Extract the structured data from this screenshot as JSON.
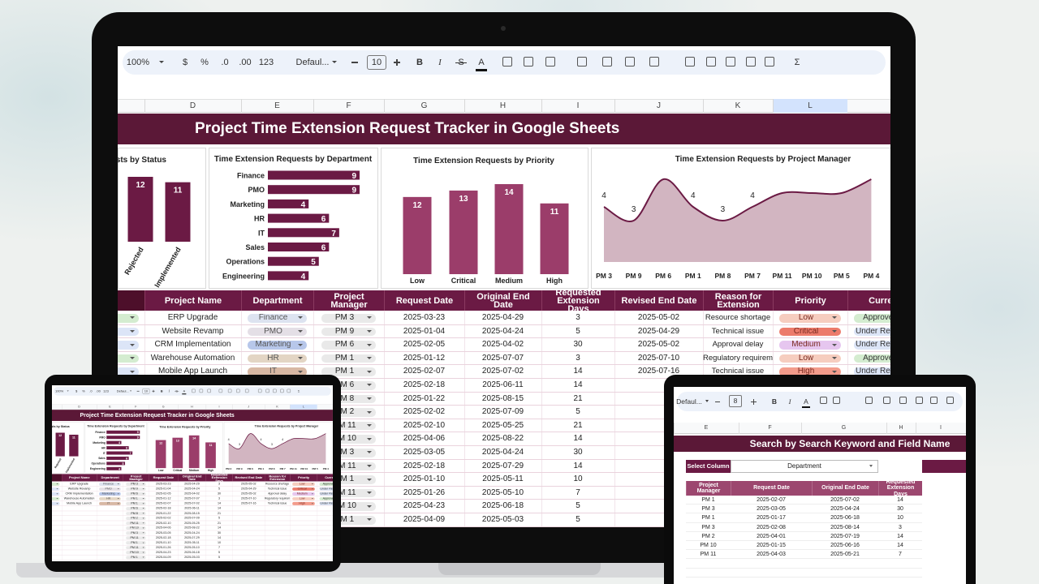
{
  "toolbar": {
    "zoom": "100%",
    "currency": "$",
    "percent": "%",
    "decrease_decimals": ".0",
    "increase_decimals": ".00",
    "number_format": "123",
    "font": "Defaul...",
    "font_size": "10",
    "bold": "B",
    "italic": "I",
    "strikethrough": "S",
    "text_color": "A",
    "functions": "Σ"
  },
  "column_letters": [
    "D",
    "E",
    "F",
    "G",
    "H",
    "I",
    "J",
    "K",
    "L"
  ],
  "title": "Project Time Extension Request Tracker in Google Sheets",
  "charts": [
    {
      "type": "bar",
      "title": "Time Extension Requests by Status",
      "categories": [
        "Rejected",
        "Implemented"
      ],
      "values": [
        12,
        11
      ],
      "color": "#6b1a44",
      "ylim": [
        0,
        12
      ]
    },
    {
      "type": "hbar",
      "title": "Time Extension Requests by Department",
      "categories": [
        "Finance",
        "PMO",
        "Marketing",
        "HR",
        "IT",
        "Sales",
        "Operations",
        "Engineering"
      ],
      "values": [
        9,
        9,
        4,
        6,
        7,
        6,
        5,
        4
      ],
      "color": "#6b1a44",
      "xlim": [
        0,
        9
      ]
    },
    {
      "type": "bar",
      "title": "Time Extension Requests by Priority",
      "categories": [
        "Low",
        "Critical",
        "Medium",
        "High"
      ],
      "values": [
        12,
        13,
        14,
        11
      ],
      "color": "#9b3d6a",
      "ylim": [
        0,
        14
      ]
    },
    {
      "type": "area",
      "title": "Time Extension Requests by Project Manager",
      "categories": [
        "PM 3",
        "PM 9",
        "PM 6",
        "PM 1",
        "PM 8",
        "PM 7",
        "PM 11",
        "PM 10",
        "PM 5",
        "PM 4"
      ],
      "values": [
        4,
        3,
        6,
        4,
        3,
        4,
        5,
        5,
        5,
        6
      ],
      "value_labels": [
        "4",
        "3",
        null,
        "4",
        "3",
        "4",
        null,
        null,
        null,
        null
      ],
      "color": "#6b1a44",
      "fill": "#d2b5c1",
      "ylim": [
        0,
        8
      ]
    }
  ],
  "table": {
    "headers": [
      "Project Name",
      "Department",
      "Project Manager",
      "Request Date",
      "Original End Date",
      "Requested Extension Days",
      "Revised End Date",
      "Reason for Extension",
      "Priority",
      "Current"
    ],
    "rows": [
      {
        "project": "ERP Upgrade",
        "department": "Finance",
        "manager": "PM 3",
        "request_date": "2025-03-23",
        "original_end_date": "2025-04-29",
        "extension_days": 3,
        "revised_end_date": "2025-05-02",
        "reason": "Resource shortage",
        "priority": "Low",
        "status": "Approved"
      },
      {
        "project": "Website Revamp",
        "department": "PMO",
        "manager": "PM 9",
        "request_date": "2025-01-04",
        "original_end_date": "2025-04-24",
        "extension_days": 5,
        "revised_end_date": "2025-04-29",
        "reason": "Technical issue",
        "priority": "Critical",
        "status": "Under Review"
      },
      {
        "project": "CRM Implementation",
        "department": "Marketing",
        "manager": "PM 6",
        "request_date": "2025-02-05",
        "original_end_date": "2025-04-02",
        "extension_days": 30,
        "revised_end_date": "2025-05-02",
        "reason": "Approval delay",
        "priority": "Medium",
        "status": "Under Review"
      },
      {
        "project": "Warehouse Automation",
        "department": "HR",
        "manager": "PM 1",
        "request_date": "2025-01-12",
        "original_end_date": "2025-07-07",
        "extension_days": 3,
        "revised_end_date": "2025-07-10",
        "reason": "Regulatory requirement",
        "priority": "Low",
        "status": "Approved"
      },
      {
        "project": "Mobile App Launch",
        "department": "IT",
        "manager": "PM 1",
        "request_date": "2025-02-07",
        "original_end_date": "2025-07-02",
        "extension_days": 14,
        "revised_end_date": "2025-07-16",
        "reason": "Technical issue",
        "priority": "High",
        "status": "Under Review"
      },
      {
        "manager": "PM 6",
        "request_date": "2025-02-18",
        "original_end_date": "2025-06-11",
        "extension_days": 14
      },
      {
        "manager": "PM 8",
        "request_date": "2025-01-22",
        "original_end_date": "2025-08-15",
        "extension_days": 21
      },
      {
        "manager": "PM 2",
        "request_date": "2025-02-02",
        "original_end_date": "2025-07-09",
        "extension_days": 5
      },
      {
        "manager": "PM 11",
        "request_date": "2025-02-10",
        "original_end_date": "2025-05-25",
        "extension_days": 21
      },
      {
        "manager": "PM 10",
        "request_date": "2025-04-06",
        "original_end_date": "2025-08-22",
        "extension_days": 14
      },
      {
        "manager": "PM 3",
        "request_date": "2025-03-05",
        "original_end_date": "2025-04-24",
        "extension_days": 30
      },
      {
        "manager": "PM 11",
        "request_date": "2025-02-18",
        "original_end_date": "2025-07-29",
        "extension_days": 14
      },
      {
        "manager": "PM 1",
        "request_date": "2025-01-10",
        "original_end_date": "2025-05-11",
        "extension_days": 10
      },
      {
        "manager": "PM 11",
        "request_date": "2025-01-26",
        "original_end_date": "2025-05-10",
        "extension_days": 7
      },
      {
        "manager": "PM 10",
        "request_date": "2025-04-23",
        "original_end_date": "2025-06-18",
        "extension_days": 5
      },
      {
        "manager": "PM 1",
        "request_date": "2025-04-09",
        "original_end_date": "2025-05-03",
        "extension_days": 5
      }
    ]
  },
  "search_panel": {
    "toolbar": {
      "font": "Defaul...",
      "font_size": "8",
      "bold": "B",
      "italic": "I",
      "text_color": "A"
    },
    "column_letters": [
      "E",
      "F",
      "G",
      "H",
      "I"
    ],
    "title": "Search by Search Keyword and Field Name",
    "select_label": "Select Column",
    "select_value": "Department",
    "headers": [
      "Project Manager",
      "Request Date",
      "Original End Date",
      "Requested Extension Days"
    ],
    "rows": [
      [
        "PM 1",
        "2025-02-07",
        "2025-07-02",
        14
      ],
      [
        "PM 3",
        "2025-03-05",
        "2025-04-24",
        30
      ],
      [
        "PM 1",
        "2025-01-17",
        "2025-06-18",
        10
      ],
      [
        "PM 3",
        "2025-02-08",
        "2025-08-14",
        3
      ],
      [
        "PM 2",
        "2025-04-01",
        "2025-07-19",
        14
      ],
      [
        "PM 10",
        "2025-01-15",
        "2025-06-16",
        14
      ],
      [
        "PM 11",
        "2025-04-03",
        "2025-05-21",
        7
      ]
    ]
  }
}
